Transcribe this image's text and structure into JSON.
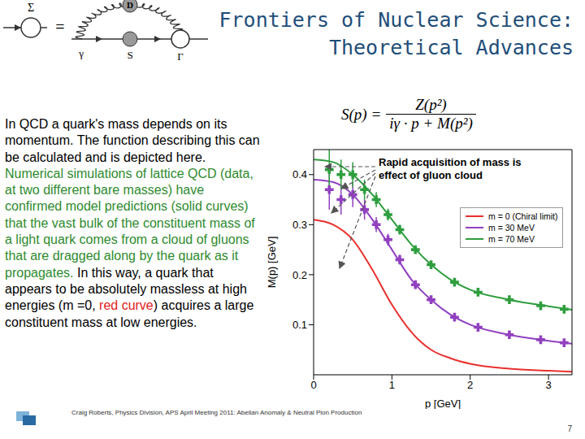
{
  "slide": {
    "title": [
      "Frontiers of Nuclear Science:",
      "Theoretical Advances"
    ],
    "diagram": {
      "left": "Σ",
      "equals": "=",
      "labels": [
        "D",
        "γ",
        "S",
        "Γ"
      ]
    },
    "formula": {
      "lhs": "S(p) =",
      "numerator": "Z(p²)",
      "denominator": "iγ · p + M(p²)"
    },
    "body": [
      {
        "text": "In QCD a quark's mass depends on its momentum.  The function describing this can be calculated and is depicted here.  ",
        "color": "#000000"
      },
      {
        "text": "Numerical simulations of lattice QCD (data, at two different bare masses) have confirmed model predictions (solid curves) that the vast bulk of the constituent mass of a light quark comes from a cloud of gluons that are dragged along by the quark as it propagates.",
        "color": "#2e8b2e"
      },
      {
        "text": "  In this way, a quark that appears to be absolutely massless at high energies (m =0, ",
        "color": "#000000"
      },
      {
        "text": "red curve",
        "color": "#e02020"
      },
      {
        "text": ") acquires a large constituent mass at low energies.",
        "color": "#000000"
      }
    ],
    "footer": "Craig Roberts, Physics Division, APS April Meeting 2011: Abelian Anomaly & Neutral Pion Production",
    "page": "7"
  },
  "chart_data": {
    "type": "line",
    "x_label": "p [GeV]",
    "y_label": "M(p) [GeV]",
    "annotation": [
      "Rapid acquisition of mass is",
      "effect of gluon cloud"
    ],
    "xlim": [
      0,
      3.3
    ],
    "ylim": [
      0,
      0.45
    ],
    "xticks": [
      0,
      1,
      2,
      3
    ],
    "yticks": [
      0.1,
      0.2,
      0.3,
      0.4
    ],
    "legend": "right",
    "x": [
      0,
      0.25,
      0.5,
      0.75,
      1,
      1.25,
      1.5,
      1.75,
      2,
      2.5,
      3,
      3.3
    ],
    "series": [
      {
        "name": "m = 0 (Chiral limit)",
        "color": "#e8312f",
        "values": [
          0.31,
          0.3,
          0.27,
          0.21,
          0.14,
          0.085,
          0.05,
          0.033,
          0.022,
          0.012,
          0.008,
          0.006
        ]
      },
      {
        "name": "m = 30 MeV",
        "color": "#9140c0",
        "values": [
          0.39,
          0.385,
          0.36,
          0.31,
          0.25,
          0.19,
          0.15,
          0.12,
          0.1,
          0.08,
          0.068,
          0.062
        ],
        "lattice": {
          "x": [
            0.2,
            0.35,
            0.5,
            0.65,
            0.8,
            0.95,
            1.1,
            1.3,
            1.5,
            1.8,
            2.1,
            2.5,
            2.9,
            3.2
          ],
          "values": [
            0.37,
            0.35,
            0.36,
            0.33,
            0.3,
            0.27,
            0.23,
            0.18,
            0.15,
            0.115,
            0.095,
            0.08,
            0.07,
            0.064
          ],
          "error": [
            0.04,
            0.03,
            0.025,
            0.02,
            0.015,
            0.012,
            0.01,
            0.008,
            0.006,
            0.005,
            0.004,
            0.004,
            0.003,
            0.003
          ]
        }
      },
      {
        "name": "m = 70 MeV",
        "color": "#2e9e3e",
        "values": [
          0.43,
          0.425,
          0.4,
          0.36,
          0.31,
          0.26,
          0.22,
          0.19,
          0.17,
          0.15,
          0.137,
          0.13
        ],
        "lattice": {
          "x": [
            0.2,
            0.35,
            0.5,
            0.65,
            0.8,
            0.95,
            1.1,
            1.3,
            1.5,
            1.8,
            2.1,
            2.5,
            2.9,
            3.2
          ],
          "values": [
            0.41,
            0.4,
            0.4,
            0.37,
            0.35,
            0.32,
            0.29,
            0.25,
            0.22,
            0.185,
            0.165,
            0.15,
            0.138,
            0.131
          ],
          "error": [
            0.04,
            0.03,
            0.025,
            0.02,
            0.015,
            0.012,
            0.01,
            0.008,
            0.006,
            0.005,
            0.004,
            0.004,
            0.003,
            0.003
          ]
        }
      }
    ]
  }
}
